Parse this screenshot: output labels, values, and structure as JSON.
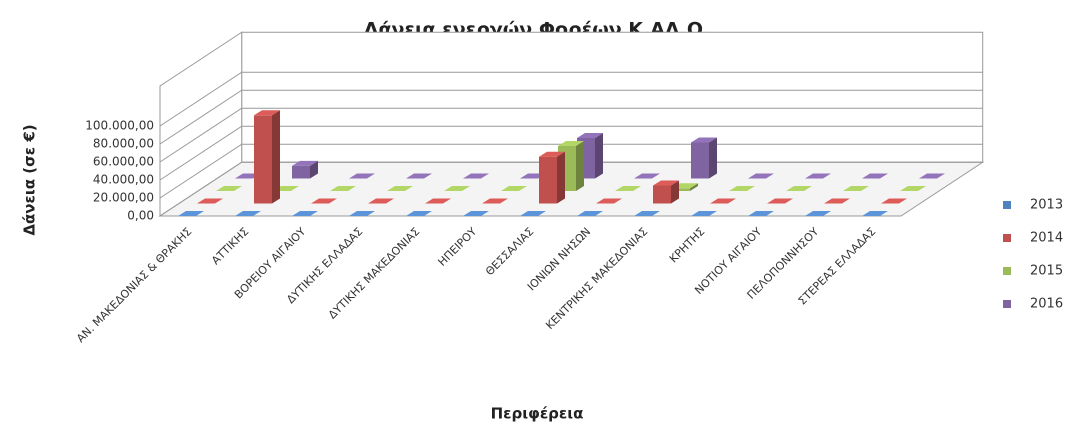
{
  "chart_data": {
    "type": "bar3d",
    "title": "Δάνεια  ενεργών Φορέων Κ.ΑΛ.Ο.",
    "y_label": "Δάνεια  (σε €)",
    "x_label": "Περιφέρεια",
    "categories": [
      "ΑΝ. ΜΑΚΕΔΟΝΙΑΣ & ΘΡΑΚΗΣ",
      "ΑΤΤΙΚΗΣ",
      "ΒΟΡΕΙΟΥ ΑΙΓΑΙΟΥ",
      "ΔΥΤΙΚΗΣ ΕΛΛΑΔΑΣ",
      "ΔΥΤΙΚΗΣ ΜΑΚΕΔΟΝΙΑΣ",
      "ΗΠΕΙΡΟΥ",
      "ΘΕΣΣΑΛΙΑΣ",
      "ΙΟΝΙΩΝ ΝΗΣΩΝ",
      "ΚΕΝΤΡΙΚΗΣ ΜΑΚΕΔΟΝΙΑΣ",
      "ΚΡΗΤΗΣ",
      "ΝΟΤΙΟΥ ΑΙΓΑΙΟΥ",
      "ΠΕΛΟΠΟΝΝΗΣΟΥ",
      "ΣΤΕΡΕΑΣ ΕΛΛΑΔΑΣ"
    ],
    "series": [
      {
        "name": "2013",
        "color": "#4f81bd",
        "values": [
          0,
          0,
          0,
          0,
          0,
          0,
          0,
          0,
          0,
          0,
          0,
          0,
          0
        ]
      },
      {
        "name": "2014",
        "color": "#c0504d",
        "values": [
          0,
          98000,
          0,
          0,
          0,
          0,
          52000,
          0,
          20000,
          0,
          0,
          0,
          0
        ]
      },
      {
        "name": "2015",
        "color": "#9bbb59",
        "values": [
          0,
          0,
          0,
          0,
          0,
          0,
          50000,
          0,
          3000,
          0,
          0,
          0,
          0
        ]
      },
      {
        "name": "2016",
        "color": "#8064a2",
        "values": [
          0,
          14000,
          0,
          0,
          0,
          0,
          45000,
          0,
          40000,
          0,
          0,
          0,
          0
        ]
      }
    ],
    "ylim": [
      0,
      100000
    ],
    "yticks": [
      {
        "value": 0,
        "label": "0,00"
      },
      {
        "value": 20000,
        "label": "20.000,00"
      },
      {
        "value": 40000,
        "label": "40.000,00"
      },
      {
        "value": 60000,
        "label": "60.000,00"
      },
      {
        "value": 80000,
        "label": "80.000,00"
      },
      {
        "value": 100000,
        "label": "100.000,00"
      }
    ],
    "grid": true,
    "legend": "right"
  }
}
